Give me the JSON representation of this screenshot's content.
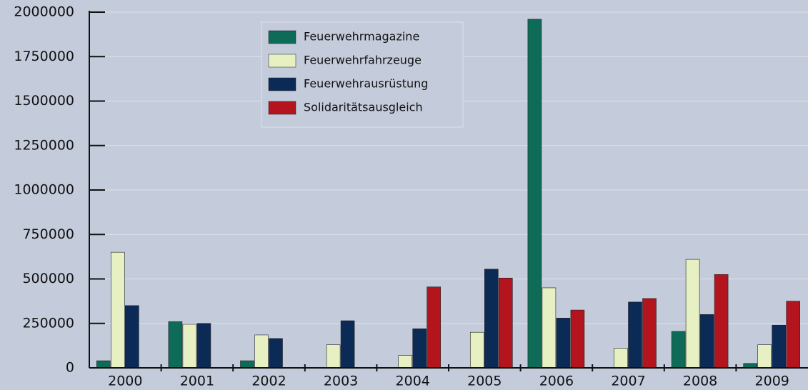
{
  "chart_data": {
    "type": "bar",
    "categories": [
      "2000",
      "2001",
      "2002",
      "2003",
      "2004",
      "2005",
      "2006",
      "2007",
      "2008",
      "2009"
    ],
    "series": [
      {
        "name": "Feuerwehrmagazine",
        "color": "#0e6b57",
        "values": [
          40000,
          260000,
          40000,
          0,
          0,
          0,
          1960000,
          0,
          205000,
          25000
        ]
      },
      {
        "name": "Feuerwehrfahrzeuge",
        "color": "#e6f0c3",
        "values": [
          650000,
          245000,
          185000,
          130000,
          70000,
          200000,
          450000,
          110000,
          610000,
          130000
        ]
      },
      {
        "name": "Feuerwehrausrüstung",
        "color": "#0b2a56",
        "values": [
          350000,
          250000,
          165000,
          265000,
          220000,
          555000,
          280000,
          370000,
          300000,
          240000
        ]
      },
      {
        "name": "Solidaritätsausgleich",
        "color": "#b3141d",
        "values": [
          0,
          0,
          0,
          0,
          455000,
          505000,
          325000,
          390000,
          525000,
          375000
        ]
      }
    ],
    "ylim": [
      0,
      2000000
    ],
    "yticks": [
      0,
      250000,
      500000,
      750000,
      1000000,
      1250000,
      1500000,
      1750000,
      2000000
    ],
    "grid": true
  }
}
